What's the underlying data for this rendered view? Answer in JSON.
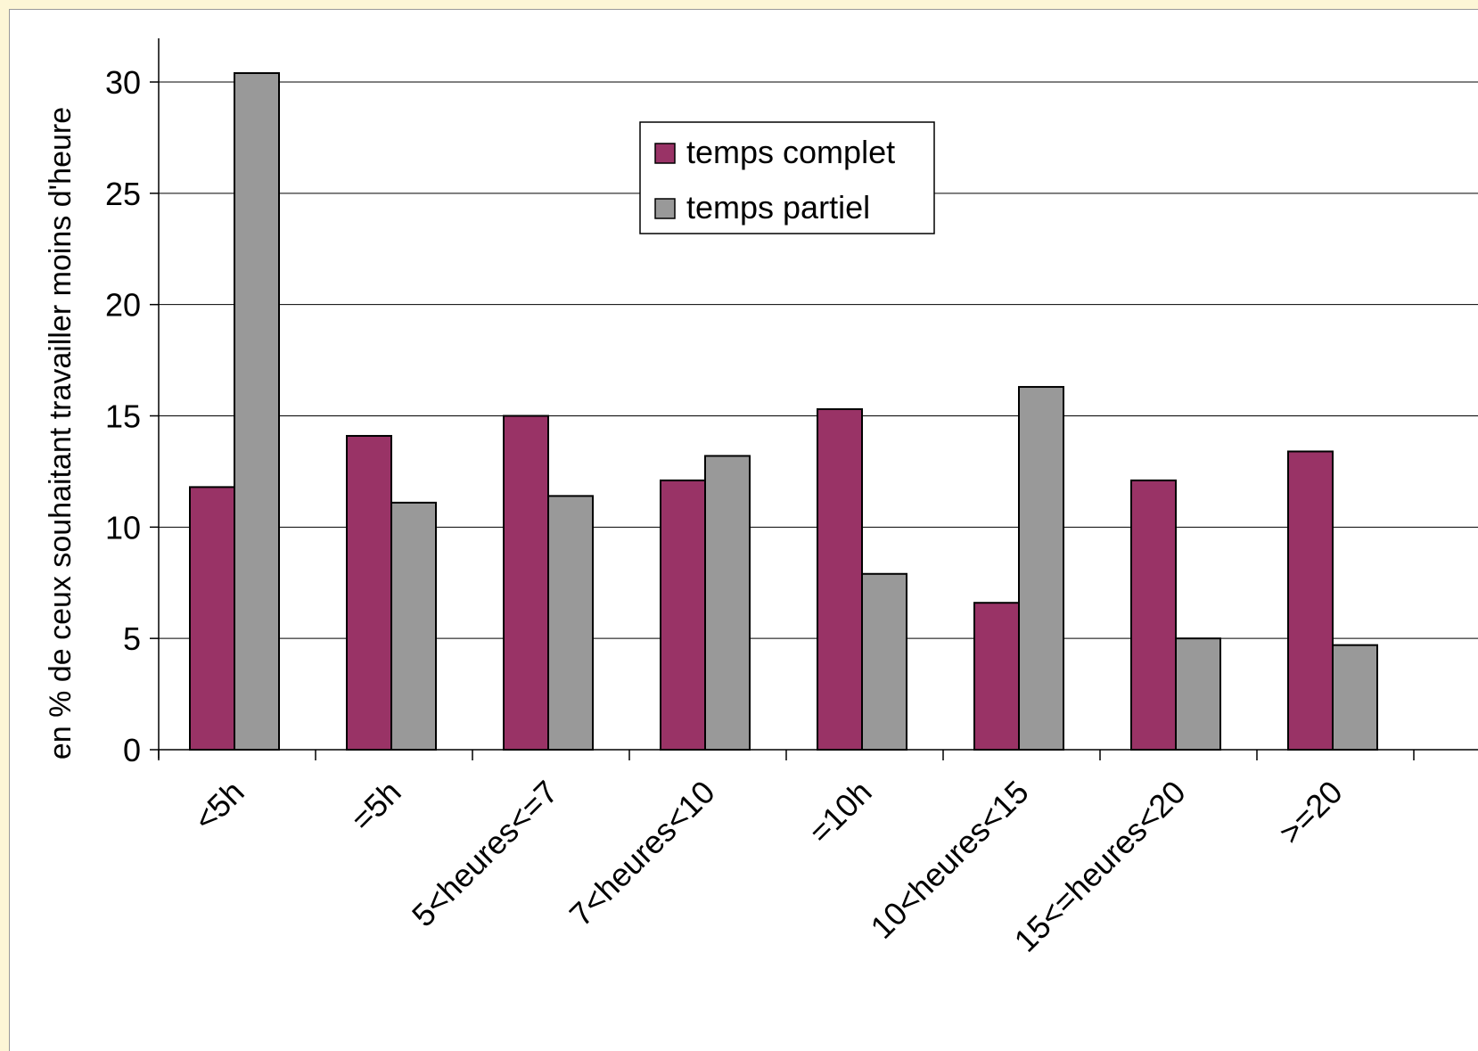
{
  "chart_data": {
    "type": "bar",
    "title": "",
    "xlabel": "",
    "ylabel": "en % de ceux souhaitant travailler moins d'heure",
    "ylim": [
      0,
      32
    ],
    "yticks": [
      0,
      5,
      10,
      15,
      20,
      25,
      30
    ],
    "grid": true,
    "legend_position": "top-center",
    "categories": [
      "<5h",
      "=5h",
      "5<heures<=7",
      "7<heures<10",
      "=10h",
      "10<heures<15",
      "15<=heures<20",
      ">=20"
    ],
    "series": [
      {
        "name": "temps complet",
        "color": "#993366",
        "values": [
          11.8,
          14.1,
          15.0,
          12.1,
          15.3,
          6.6,
          12.1,
          13.4
        ]
      },
      {
        "name": "temps partiel",
        "color": "#999999",
        "values": [
          30.4,
          11.1,
          11.4,
          13.2,
          7.9,
          16.3,
          5.0,
          4.7
        ]
      }
    ]
  }
}
